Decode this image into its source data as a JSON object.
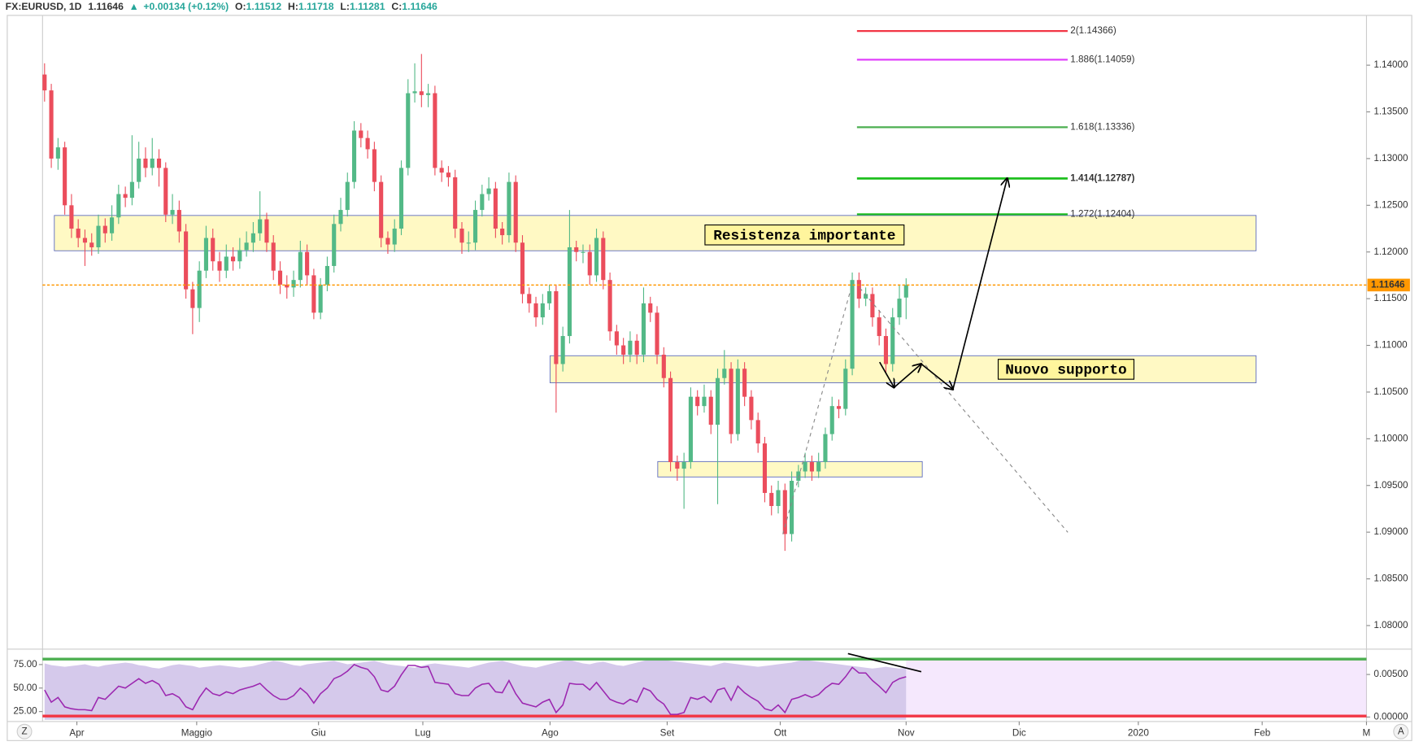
{
  "chart_data": {
    "type": "candlestick",
    "symbol": "FX:EURUSD, 1D",
    "direction": "▲",
    "change": "+0.00134 (+0.12%)",
    "ohlc_labels": [
      "O:",
      "H:",
      "L:",
      "C:"
    ],
    "up_color": "#53b987",
    "down_color": "#eb4d5c",
    "xlim": [
      -6.3,
      190.4
    ],
    "xticks": [
      {
        "value": -1.2,
        "label": "Apr"
      },
      {
        "value": 16.6,
        "label": "Maggio"
      },
      {
        "value": 34.7,
        "label": "Giu"
      },
      {
        "value": 50.2,
        "label": "Lug"
      },
      {
        "value": 69.1,
        "label": "Ago"
      },
      {
        "value": 86.5,
        "label": "Set"
      },
      {
        "value": 103.3,
        "label": "Ott"
      },
      {
        "value": 122,
        "label": "Nov"
      },
      {
        "value": 138.8,
        "label": "Dic"
      },
      {
        "value": 156.5,
        "label": "2020"
      },
      {
        "value": 174.9,
        "label": "Feb"
      },
      {
        "value": 190.4,
        "label": "M"
      }
    ],
    "ylim": [
      1.07767,
      1.14504
    ],
    "yticks": [
      {
        "value": 1.08,
        "label": "1.08000"
      },
      {
        "value": 1.085,
        "label": "1.08500"
      },
      {
        "value": 1.09,
        "label": "1.09000"
      },
      {
        "value": 1.095,
        "label": "1.09500"
      },
      {
        "value": 1.1,
        "label": "1.10000"
      },
      {
        "value": 1.105,
        "label": "1.10500"
      },
      {
        "value": 1.11,
        "label": "1.11000"
      },
      {
        "value": 1.115,
        "label": "1.11500"
      },
      {
        "value": 1.12,
        "label": "1.12000"
      },
      {
        "value": 1.125,
        "label": "1.12500"
      },
      {
        "value": 1.13,
        "label": "1.13000"
      },
      {
        "value": 1.135,
        "label": "1.13500"
      },
      {
        "value": 1.14,
        "label": "1.14000"
      }
    ],
    "price_line_color": "#ff9800",
    "x": [
      -6,
      -5,
      -4,
      -3,
      -2,
      -1,
      0,
      1,
      2,
      3,
      4,
      5,
      6,
      7,
      8,
      9,
      10,
      11,
      12,
      13,
      14,
      15,
      16,
      17,
      18,
      19,
      20,
      21,
      22,
      23,
      24,
      25,
      26,
      27,
      28,
      29,
      30,
      31,
      32,
      33,
      34,
      35,
      36,
      37,
      38,
      39,
      40,
      41,
      42,
      43,
      44,
      45,
      46,
      47,
      48,
      49,
      50,
      51,
      52,
      53,
      54,
      55,
      56,
      57,
      58,
      59,
      60,
      61,
      62,
      63,
      64,
      65,
      66,
      67,
      68,
      69,
      70,
      71,
      72,
      73,
      74,
      75,
      76,
      77,
      78,
      79,
      80,
      81,
      82,
      83,
      84,
      85,
      86,
      87,
      88,
      89,
      90,
      91,
      92,
      93,
      94,
      95,
      96,
      97,
      98,
      99,
      100,
      101,
      102,
      103,
      104,
      105,
      106,
      107,
      108,
      109,
      110,
      111,
      112,
      113,
      114,
      115,
      116,
      117,
      118,
      119,
      120,
      121,
      122
    ],
    "candles": [
      [
        1.139,
        1.1402,
        1.1361,
        1.1373
      ],
      [
        1.1373,
        1.138,
        1.129,
        1.13
      ],
      [
        1.13,
        1.1322,
        1.1288,
        1.1312
      ],
      [
        1.1312,
        1.1318,
        1.124,
        1.125
      ],
      [
        1.125,
        1.1262,
        1.1215,
        1.1225
      ],
      [
        1.1225,
        1.1235,
        1.1205,
        1.1215
      ],
      [
        1.1215,
        1.1224,
        1.1185,
        1.121
      ],
      [
        1.121,
        1.122,
        1.1196,
        1.1205
      ],
      [
        1.1205,
        1.124,
        1.1198,
        1.1228
      ],
      [
        1.1228,
        1.1236,
        1.121,
        1.122
      ],
      [
        1.122,
        1.125,
        1.1212,
        1.1237
      ],
      [
        1.1237,
        1.1272,
        1.123,
        1.1262
      ],
      [
        1.1262,
        1.127,
        1.1248,
        1.1258
      ],
      [
        1.1258,
        1.1325,
        1.125,
        1.1275
      ],
      [
        1.1275,
        1.1318,
        1.1268,
        1.13
      ],
      [
        1.13,
        1.1312,
        1.128,
        1.129
      ],
      [
        1.129,
        1.1322,
        1.1282,
        1.13
      ],
      [
        1.13,
        1.131,
        1.127,
        1.129
      ],
      [
        1.129,
        1.1296,
        1.1232,
        1.124
      ],
      [
        1.124,
        1.1262,
        1.123,
        1.1245
      ],
      [
        1.1245,
        1.1255,
        1.121,
        1.1222
      ],
      [
        1.1222,
        1.123,
        1.115,
        1.116
      ],
      [
        1.116,
        1.1168,
        1.1112,
        1.114
      ],
      [
        1.114,
        1.119,
        1.1125,
        1.118
      ],
      [
        1.118,
        1.1228,
        1.1172,
        1.1215
      ],
      [
        1.1215,
        1.1225,
        1.118,
        1.119
      ],
      [
        1.119,
        1.12,
        1.1168,
        1.118
      ],
      [
        1.118,
        1.1208,
        1.1172,
        1.1195
      ],
      [
        1.1195,
        1.1205,
        1.118,
        1.119
      ],
      [
        1.119,
        1.1215,
        1.1182,
        1.1202
      ],
      [
        1.1202,
        1.1222,
        1.1195,
        1.121
      ],
      [
        1.121,
        1.1232,
        1.12,
        1.122
      ],
      [
        1.122,
        1.1265,
        1.1212,
        1.1235
      ],
      [
        1.1235,
        1.1242,
        1.12,
        1.121
      ],
      [
        1.121,
        1.1218,
        1.117,
        1.118
      ],
      [
        1.118,
        1.119,
        1.1155,
        1.1165
      ],
      [
        1.1165,
        1.1175,
        1.115,
        1.1162
      ],
      [
        1.1162,
        1.118,
        1.1152,
        1.117
      ],
      [
        1.117,
        1.1212,
        1.1162,
        1.12
      ],
      [
        1.12,
        1.1208,
        1.1165,
        1.1175
      ],
      [
        1.1175,
        1.1182,
        1.1128,
        1.1135
      ],
      [
        1.1135,
        1.1172,
        1.1128,
        1.1165
      ],
      [
        1.1165,
        1.1195,
        1.1158,
        1.1185
      ],
      [
        1.1185,
        1.124,
        1.1178,
        1.123
      ],
      [
        1.123,
        1.1258,
        1.1222,
        1.1245
      ],
      [
        1.1245,
        1.1285,
        1.1238,
        1.1275
      ],
      [
        1.1275,
        1.134,
        1.1268,
        1.133
      ],
      [
        1.133,
        1.1338,
        1.1312,
        1.1322
      ],
      [
        1.1322,
        1.133,
        1.13,
        1.131
      ],
      [
        1.131,
        1.1318,
        1.1265,
        1.1275
      ],
      [
        1.1275,
        1.1282,
        1.1205,
        1.1215
      ],
      [
        1.1215,
        1.1222,
        1.1198,
        1.1208
      ],
      [
        1.1208,
        1.1235,
        1.12,
        1.1225
      ],
      [
        1.1225,
        1.1298,
        1.1218,
        1.129
      ],
      [
        1.129,
        1.1385,
        1.1282,
        1.137
      ],
      [
        1.137,
        1.1402,
        1.136,
        1.1372
      ],
      [
        1.1372,
        1.1412,
        1.1355,
        1.1368
      ],
      [
        1.1368,
        1.138,
        1.1355,
        1.137
      ],
      [
        1.137,
        1.1378,
        1.1282,
        1.129
      ],
      [
        1.129,
        1.1298,
        1.1275,
        1.1285
      ],
      [
        1.1285,
        1.1292,
        1.127,
        1.128
      ],
      [
        1.128,
        1.1288,
        1.1215,
        1.1225
      ],
      [
        1.1225,
        1.1232,
        1.1198,
        1.121
      ],
      [
        1.121,
        1.1222,
        1.12,
        1.121
      ],
      [
        1.121,
        1.1255,
        1.1202,
        1.1245
      ],
      [
        1.1245,
        1.1272,
        1.1238,
        1.1262
      ],
      [
        1.1262,
        1.128,
        1.1255,
        1.1268
      ],
      [
        1.1268,
        1.1275,
        1.1215,
        1.1225
      ],
      [
        1.1225,
        1.1232,
        1.1208,
        1.1218
      ],
      [
        1.1218,
        1.1285,
        1.121,
        1.1275
      ],
      [
        1.1275,
        1.1282,
        1.12,
        1.121
      ],
      [
        1.121,
        1.1218,
        1.1145,
        1.1155
      ],
      [
        1.1155,
        1.1162,
        1.1135,
        1.1145
      ],
      [
        1.1145,
        1.1152,
        1.112,
        1.113
      ],
      [
        1.113,
        1.1155,
        1.1122,
        1.1145
      ],
      [
        1.1145,
        1.1165,
        1.1138,
        1.1158
      ],
      [
        1.1158,
        1.1165,
        1.1028,
        1.108
      ],
      [
        1.108,
        1.112,
        1.1072,
        1.111
      ],
      [
        1.111,
        1.1245,
        1.1102,
        1.1205
      ],
      [
        1.1205,
        1.1212,
        1.119,
        1.12
      ],
      [
        1.12,
        1.1208,
        1.1188,
        1.12
      ],
      [
        1.12,
        1.1208,
        1.1165,
        1.1175
      ],
      [
        1.1175,
        1.1225,
        1.1168,
        1.1215
      ],
      [
        1.1215,
        1.1222,
        1.116,
        1.117
      ],
      [
        1.117,
        1.1178,
        1.1105,
        1.1115
      ],
      [
        1.1115,
        1.1122,
        1.109,
        1.11
      ],
      [
        1.11,
        1.1108,
        1.108,
        1.109
      ],
      [
        1.109,
        1.1115,
        1.1082,
        1.1105
      ],
      [
        1.1105,
        1.1112,
        1.108,
        1.109
      ],
      [
        1.109,
        1.1162,
        1.1082,
        1.1145
      ],
      [
        1.1145,
        1.1152,
        1.1125,
        1.1135
      ],
      [
        1.1135,
        1.1142,
        1.108,
        1.109
      ],
      [
        1.109,
        1.1098,
        1.1055,
        1.1065
      ],
      [
        1.1065,
        1.1072,
        1.0965,
        1.0975
      ],
      [
        1.0975,
        1.0982,
        1.0955,
        1.0968
      ],
      [
        1.0968,
        1.0985,
        1.0925,
        1.0975
      ],
      [
        1.0975,
        1.1055,
        1.0968,
        1.1045
      ],
      [
        1.1045,
        1.1052,
        1.1025,
        1.1035
      ],
      [
        1.1035,
        1.1058,
        1.1028,
        1.1045
      ],
      [
        1.1045,
        1.1052,
        1.1005,
        1.1015
      ],
      [
        1.1015,
        1.1075,
        1.093,
        1.1065
      ],
      [
        1.1065,
        1.1095,
        1.1058,
        1.1075
      ],
      [
        1.1075,
        1.1082,
        1.0995,
        1.1005
      ],
      [
        1.1005,
        1.1085,
        1.0998,
        1.1075
      ],
      [
        1.1075,
        1.1082,
        1.1035,
        1.1045
      ],
      [
        1.1045,
        1.1052,
        1.101,
        1.102
      ],
      [
        1.102,
        1.1028,
        1.0985,
        1.0995
      ],
      [
        1.0995,
        1.1002,
        1.0932,
        1.0942
      ],
      [
        1.0942,
        1.095,
        1.0918,
        1.0928
      ],
      [
        1.0928,
        1.0955,
        1.092,
        1.0945
      ],
      [
        1.0945,
        1.0952,
        1.088,
        1.0898
      ],
      [
        1.0898,
        1.0965,
        1.089,
        1.0955
      ],
      [
        1.0955,
        1.0972,
        1.0948,
        1.0965
      ],
      [
        1.0965,
        1.0985,
        1.0958,
        1.0975
      ],
      [
        1.0975,
        1.0982,
        1.0955,
        1.0965
      ],
      [
        1.0965,
        1.0985,
        1.0958,
        1.0975
      ],
      [
        1.0975,
        1.1012,
        1.0968,
        1.1005
      ],
      [
        1.1005,
        1.1045,
        1.0998,
        1.1035
      ],
      [
        1.1035,
        1.1042,
        1.1022,
        1.1032
      ],
      [
        1.1032,
        1.1085,
        1.1025,
        1.1075
      ],
      [
        1.1075,
        1.1178,
        1.1068,
        1.117
      ],
      [
        1.117,
        1.1178,
        1.114,
        1.115
      ],
      [
        1.115,
        1.1162,
        1.1142,
        1.1155
      ],
      [
        1.1155,
        1.1162,
        1.112,
        1.113
      ],
      [
        1.113,
        1.1138,
        1.11,
        1.111
      ],
      [
        1.111,
        1.1118,
        1.107,
        1.108
      ],
      [
        1.108,
        1.114,
        1.1072,
        1.113
      ],
      [
        1.113,
        1.1165,
        1.1122,
        1.115
      ],
      [
        1.11512,
        1.11718,
        1.11281,
        1.11646
      ]
    ],
    "zones": [
      {
        "label": "Resistenza importante",
        "x": [
          -4.55,
          174.0
        ],
        "y": [
          1.12013,
          1.12391
        ]
      },
      {
        "label": "Nuovo supporto",
        "x": [
          69.1,
          174.0
        ],
        "y": [
          1.10599,
          1.10889
        ]
      },
      {
        "x": [
          85.1,
          124.4
        ],
        "y": [
          1.09591,
          1.09756
        ]
      }
    ],
    "fib_x": [
      114.7,
      146.0
    ],
    "fib_levels": [
      {
        "label": "2(1.14366)",
        "value": 1.14366,
        "color": "#f23645"
      },
      {
        "label": "1.886(1.14059)",
        "value": 1.14059,
        "color": "#e040fb"
      },
      {
        "label": "1.618(1.13336)",
        "value": 1.13336,
        "color": "#4caf50"
      },
      {
        "label": "1.414(1.12787)",
        "value": 1.12787,
        "color": "#1fbf1f"
      },
      {
        "label": "1.272(1.12404)",
        "value": 1.12404,
        "color": "#1fbf1f"
      }
    ],
    "rsi": {
      "color": "#9c27b0",
      "ylim": [
        16.3,
        88.5
      ],
      "yticks": [
        {
          "value": 75,
          "label": "75.00"
        },
        {
          "value": 50,
          "label": "50.00"
        },
        {
          "value": 25,
          "label": "25.00"
        }
      ],
      "levels": [
        {
          "value": 80.8,
          "color": "#4caf50"
        },
        {
          "value": 20.2,
          "color": "#f23645"
        }
      ],
      "values": [
        48,
        35,
        40,
        30,
        28,
        27,
        27,
        26,
        40,
        38,
        45,
        52,
        50,
        55,
        60,
        55,
        58,
        54,
        42,
        44,
        40,
        30,
        27,
        40,
        50,
        44,
        42,
        46,
        44,
        48,
        50,
        52,
        55,
        48,
        42,
        38,
        38,
        42,
        50,
        44,
        34,
        44,
        50,
        60,
        63,
        68,
        75,
        72,
        70,
        62,
        48,
        46,
        52,
        64,
        74,
        74,
        72,
        73,
        56,
        55,
        54,
        44,
        42,
        42,
        50,
        54,
        55,
        46,
        45,
        58,
        44,
        34,
        32,
        30,
        35,
        38,
        24,
        32,
        55,
        54,
        54,
        48,
        56,
        47,
        38,
        35,
        33,
        38,
        35,
        50,
        47,
        38,
        33,
        22,
        22,
        24,
        40,
        38,
        41,
        35,
        48,
        50,
        37,
        52,
        45,
        40,
        36,
        28,
        26,
        32,
        24,
        38,
        40,
        43,
        40,
        43,
        50,
        55,
        54,
        62,
        72,
        66,
        66,
        58,
        52,
        45,
        56,
        60,
        62
      ],
      "area_color": "#b39ddb",
      "y2lim": [
        -0.00032,
        0.00766
      ],
      "y2ticks": [
        {
          "value": 0.005,
          "label": "0.00500"
        },
        {
          "value": 0,
          "label": "0.00000"
        }
      ],
      "area": [
        0.0063,
        0.0061,
        0.006,
        0.0059,
        0.006,
        0.0061,
        0.0062,
        0.006,
        0.0059,
        0.0061,
        0.0062,
        0.0063,
        0.0064,
        0.0063,
        0.0061,
        0.006,
        0.0058,
        0.0057,
        0.0059,
        0.0061,
        0.0062,
        0.0061,
        0.006,
        0.0058,
        0.0059,
        0.006,
        0.0061,
        0.006,
        0.0059,
        0.0058,
        0.0059,
        0.006,
        0.0062,
        0.0064,
        0.0066,
        0.0065,
        0.0063,
        0.0061,
        0.006,
        0.0062,
        0.0063,
        0.0064,
        0.0065,
        0.0066,
        0.0064,
        0.0062,
        0.0063,
        0.0064,
        0.0065,
        0.0066,
        0.0064,
        0.0062,
        0.0061,
        0.006,
        0.0059,
        0.0058,
        0.006,
        0.0062,
        0.0063,
        0.0062,
        0.0061,
        0.006,
        0.0059,
        0.0058,
        0.006,
        0.0062,
        0.0064,
        0.0065,
        0.0066,
        0.0064,
        0.0062,
        0.006,
        0.0059,
        0.0058,
        0.006,
        0.0062,
        0.0064,
        0.0066,
        0.0067,
        0.0065,
        0.0063,
        0.0062,
        0.0064,
        0.0065,
        0.0063,
        0.0061,
        0.006,
        0.0062,
        0.0064,
        0.0066,
        0.0068,
        0.0068,
        0.0067,
        0.0066,
        0.0065,
        0.0064,
        0.0063,
        0.0062,
        0.0061,
        0.006,
        0.0062,
        0.0064,
        0.0063,
        0.0062,
        0.0061,
        0.006,
        0.0059,
        0.006,
        0.0061,
        0.0062,
        0.0063,
        0.0064,
        0.0066,
        0.0067,
        0.0066,
        0.0065,
        0.0064,
        0.0063,
        0.0062,
        0.0061,
        0.006,
        0.0059,
        0.0058,
        0.0057,
        0.0058,
        0.0059,
        0.0058,
        0.0057,
        0.0058
      ]
    }
  },
  "toolbar": {
    "left": "Z",
    "right": "A"
  }
}
